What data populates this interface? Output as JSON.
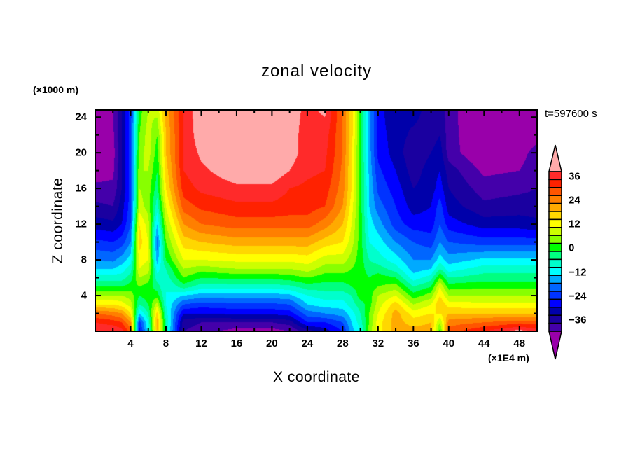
{
  "chart_data": {
    "type": "heatmap",
    "title": "zonal velocity",
    "xlabel": "X coordinate",
    "ylabel": "Z coordinate",
    "x_unit_label": "(×1E4 m)",
    "y_unit_label": "(×1000 m)",
    "time_label": "t=597600 s",
    "xlim": [
      0,
      50
    ],
    "ylim": [
      0,
      24.8
    ],
    "x_ticks": [
      4,
      8,
      12,
      16,
      20,
      24,
      28,
      32,
      36,
      40,
      44,
      48
    ],
    "y_ticks": [
      4,
      8,
      12,
      16,
      20,
      24
    ],
    "x_grid": [
      0,
      2,
      3,
      4,
      5,
      6,
      7,
      8,
      10,
      12,
      16,
      20,
      22,
      24,
      26,
      28,
      29,
      30,
      31,
      32,
      34,
      36,
      38,
      39,
      40,
      44,
      48,
      50
    ],
    "z_grid": [
      0,
      1,
      2,
      3,
      4,
      5,
      6,
      7,
      8,
      10,
      12,
      14,
      16,
      18,
      20,
      22,
      25
    ],
    "values_by_x": [
      [
        40,
        36,
        28,
        16,
        8,
        0,
        -6,
        -12,
        -16,
        -23,
        -30,
        -35,
        -39,
        -42,
        -44,
        -45,
        -45
      ],
      [
        40,
        34,
        26,
        16,
        8,
        0,
        -6,
        -12,
        -17,
        -24,
        -31,
        -36,
        -39,
        -41,
        -42,
        -41,
        -40
      ],
      [
        38,
        32,
        24,
        14,
        8,
        0,
        -6,
        -10,
        -14,
        -22,
        -28,
        -30,
        -32,
        -32,
        -32,
        -32,
        -32
      ],
      [
        30,
        24,
        16,
        10,
        6,
        2,
        -2,
        -6,
        -10,
        -16,
        -20,
        -22,
        -22,
        -22,
        -22,
        -22,
        -22
      ],
      [
        -26,
        -22,
        -12,
        -4,
        0,
        4,
        8,
        12,
        14,
        18,
        16,
        10,
        8,
        8,
        6,
        4,
        2
      ],
      [
        -10,
        -8,
        -4,
        0,
        2,
        2,
        6,
        10,
        12,
        12,
        10,
        6,
        6,
        8,
        10,
        10,
        8
      ],
      [
        20,
        22,
        18,
        10,
        2,
        -2,
        -6,
        -10,
        -14,
        -18,
        -12,
        -6,
        -2,
        0,
        2,
        4,
        10
      ],
      [
        -4,
        -4,
        -6,
        -8,
        -8,
        -8,
        -6,
        -4,
        0,
        4,
        8,
        12,
        16,
        18,
        20,
        20,
        22
      ],
      [
        -36,
        -34,
        -28,
        -20,
        -12,
        -2,
        4,
        8,
        12,
        18,
        24,
        30,
        34,
        36,
        36,
        36,
        36
      ],
      [
        -38,
        -36,
        -28,
        -22,
        -14,
        -6,
        0,
        6,
        12,
        20,
        28,
        33,
        37,
        39,
        41,
        43,
        44
      ],
      [
        -42,
        -36,
        -27,
        -21,
        -14,
        -6,
        1,
        8,
        13,
        22,
        30,
        35,
        39,
        43,
        46,
        46,
        46
      ],
      [
        -42,
        -36,
        -27,
        -21,
        -14,
        -6,
        1,
        8,
        13,
        22,
        30,
        35,
        39,
        43,
        46,
        46,
        46
      ],
      [
        -40,
        -34,
        -26,
        -20,
        -13,
        -5,
        2,
        8,
        13,
        22,
        30,
        34,
        36,
        40,
        42,
        42,
        42
      ],
      [
        -34,
        -24,
        -18,
        -12,
        -8,
        -2,
        4,
        10,
        14,
        22,
        30,
        34,
        35,
        37,
        38,
        38,
        39
      ],
      [
        -30,
        -24,
        -16,
        -10,
        -6,
        -2,
        2,
        6,
        10,
        18,
        26,
        32,
        34,
        36,
        37,
        38,
        41
      ],
      [
        -24,
        -20,
        -14,
        -10,
        -6,
        -2,
        2,
        6,
        10,
        16,
        20,
        24,
        26,
        27,
        28,
        28,
        28
      ],
      [
        -14,
        -12,
        -10,
        -6,
        -4,
        0,
        2,
        4,
        6,
        10,
        12,
        14,
        16,
        16,
        16,
        18,
        18
      ],
      [
        -8,
        -6,
        -4,
        -2,
        2,
        2,
        2,
        2,
        2,
        2,
        2,
        2,
        2,
        2,
        2,
        2,
        2
      ],
      [
        6,
        4,
        4,
        2,
        2,
        2,
        0,
        -2,
        -4,
        -8,
        -10,
        -12,
        -12,
        -13,
        -14,
        -14,
        -14
      ],
      [
        14,
        14,
        12,
        10,
        8,
        4,
        2,
        -2,
        -6,
        -10,
        -14,
        -18,
        -21,
        -23,
        -25,
        -26,
        -26
      ],
      [
        22,
        22,
        22,
        18,
        12,
        6,
        0,
        -6,
        -10,
        -16,
        -22,
        -24,
        -26,
        -28,
        -30,
        -30,
        -32
      ],
      [
        22,
        18,
        14,
        8,
        2,
        -4,
        -10,
        -14,
        -16,
        -20,
        -26,
        -30,
        -32,
        -34,
        -35,
        -33,
        -30
      ],
      [
        22,
        20,
        16,
        12,
        6,
        0,
        -6,
        -12,
        -16,
        -22,
        -26,
        -28,
        -30,
        -30,
        -32,
        -34,
        -34
      ],
      [
        2,
        8,
        16,
        20,
        16,
        12,
        4,
        -4,
        -10,
        -16,
        -20,
        -22,
        -26,
        -28,
        -30,
        -32,
        -34
      ],
      [
        30,
        26,
        20,
        14,
        8,
        2,
        -4,
        -10,
        -14,
        -20,
        -26,
        -30,
        -32,
        -34,
        -38,
        -38,
        -38
      ],
      [
        36,
        28,
        20,
        13,
        8,
        3,
        -2,
        -6,
        -11,
        -22,
        -30,
        -35,
        -38,
        -41,
        -44,
        -45,
        -46
      ],
      [
        42,
        30,
        20,
        13,
        8,
        3,
        -2,
        -6,
        -11,
        -22,
        -30,
        -34,
        -37,
        -40,
        -42,
        -44,
        -46
      ],
      [
        38,
        30,
        20,
        13,
        8,
        3,
        -2,
        -6,
        -11,
        -22,
        -31,
        -34,
        -36,
        -37,
        -38,
        -42,
        -44
      ]
    ],
    "contour_levels": [
      -40,
      -36,
      -32,
      -28,
      -24,
      -20,
      -16,
      -12,
      -8,
      -4,
      0,
      4,
      8,
      12,
      16,
      20,
      24,
      28,
      32,
      36,
      40
    ],
    "colors": [
      "#9900aa",
      "#4400aa",
      "#1a00a0",
      "#0000aa",
      "#0000ff",
      "#0033ff",
      "#0066ff",
      "#00aaff",
      "#00ffff",
      "#00ffcc",
      "#00ff80",
      "#00ff00",
      "#88ff00",
      "#ccff00",
      "#ffff00",
      "#ffd700",
      "#ffaa00",
      "#ff7f00",
      "#ff5500",
      "#ff2200",
      "#ff2a2a",
      "#ffaaaa"
    ],
    "colorbar_labels": [
      "36",
      "24",
      "12",
      "0",
      "-12",
      "-24",
      "-36"
    ],
    "legend_placement": "right"
  }
}
